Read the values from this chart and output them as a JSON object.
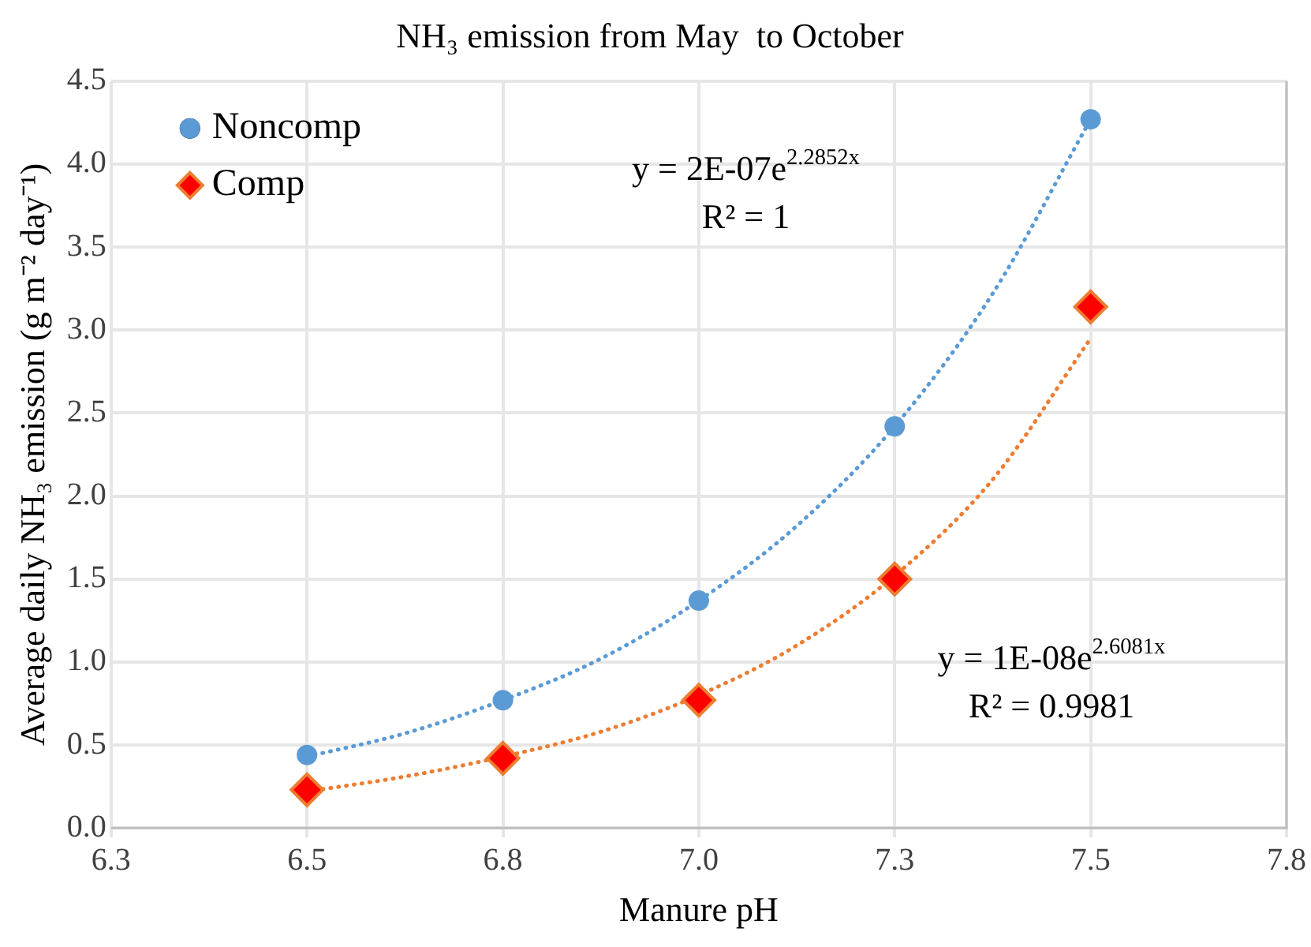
{
  "chart_data": {
    "type": "scatter",
    "title": "NH₃ emission from May  to October",
    "xlabel": "Manure pH",
    "ylabel": "Average daily NH₃ emission (g m⁻² day⁻¹)",
    "xlim": [
      6.25,
      7.75
    ],
    "xticks": [
      {
        "value": 6.25,
        "label": "6.3"
      },
      6.5,
      {
        "value": 6.75,
        "label": "6.8"
      },
      {
        "value": 7.0,
        "label": "7.0"
      },
      {
        "value": 7.25,
        "label": "7.3"
      },
      7.5,
      {
        "value": 7.75,
        "label": "7.8"
      }
    ],
    "ylim": [
      0,
      4.5
    ],
    "yticks": [
      {
        "value": 0,
        "label": "0.0"
      },
      0.5,
      {
        "value": 1,
        "label": "1.0"
      },
      1.5,
      {
        "value": 2,
        "label": "2.0"
      },
      2.5,
      {
        "value": 3,
        "label": "3.0"
      },
      3.5,
      {
        "value": 4,
        "label": "4.0"
      },
      4.5
    ],
    "grid": true,
    "legend": "top left",
    "x": [
      6.5,
      6.75,
      7.0,
      7.25,
      7.5
    ],
    "series": [
      {
        "name": "Noncomp",
        "marker": "circle",
        "color": "#5b9bd5",
        "values": [
          0.44,
          0.77,
          1.37,
          2.42,
          4.27
        ]
      },
      {
        "name": "Comp",
        "marker": "diamond",
        "color": "#ff0000",
        "values": [
          0.23,
          0.42,
          0.77,
          1.5,
          3.14
        ]
      },
      {
        "type": "line",
        "marker": "none",
        "line_style": "dotted",
        "color": "#5b9bd5",
        "x": [
          6.5,
          6.625,
          6.75,
          6.875,
          7.0,
          7.125,
          7.25,
          7.375,
          7.5
        ],
        "values": [
          0.43,
          0.57,
          0.77,
          1.02,
          1.37,
          1.82,
          2.42,
          3.22,
          4.27
        ]
      },
      {
        "type": "line",
        "marker": "none",
        "line_style": "dotted",
        "color": "#ed7d31",
        "x": [
          6.5,
          6.625,
          6.75,
          6.875,
          7.0,
          7.125,
          7.25,
          7.375,
          7.5
        ],
        "values": [
          0.22,
          0.31,
          0.43,
          0.58,
          0.8,
          1.1,
          1.52,
          2.1,
          2.95
        ]
      }
    ],
    "annotations": [
      "y = 2E-07e$^{2.2852x}$",
      "R² = 1",
      "y = 1E-08e$^{2.6081x}$",
      "R² = 0.9981"
    ]
  }
}
